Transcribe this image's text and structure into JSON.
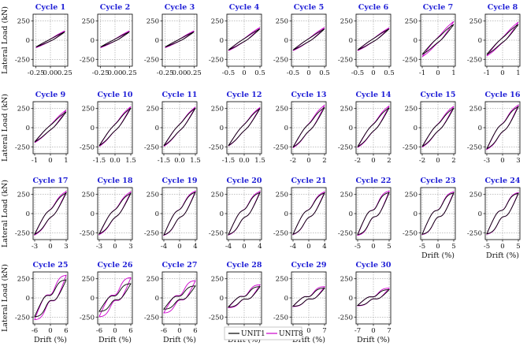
{
  "chart_data": {
    "type": "line",
    "series": [
      {
        "name": "UNIT1",
        "color": "#000000"
      },
      {
        "name": "UNIT8",
        "color": "#cc00cc"
      }
    ],
    "shared_ylabel": "Lateral Load (kN)",
    "shared_xlabel": "Drift (%)",
    "grid": true,
    "legend_placement": "bottom-center",
    "panels": [
      {
        "title": "Cycle 1",
        "drift": 0.25,
        "xticks": [
          "-0.25",
          "0.00",
          "0.25"
        ],
        "xlim": [
          -0.3,
          0.3
        ],
        "yticks": [
          "-250",
          "0",
          "250"
        ],
        "ylim": [
          -340,
          340
        ],
        "u1": [
          -90,
          110
        ],
        "u8": [
          -100,
          125
        ]
      },
      {
        "title": "Cycle 2",
        "drift": 0.25,
        "xticks": [
          "-0.25",
          "0.00",
          "0.25"
        ],
        "xlim": [
          -0.3,
          0.3
        ],
        "yticks": [
          "-250",
          "0",
          "250"
        ],
        "ylim": [
          -340,
          340
        ],
        "u1": [
          -90,
          110
        ],
        "u8": [
          -100,
          125
        ]
      },
      {
        "title": "Cycle 3",
        "drift": 0.25,
        "xticks": [
          "-0.25",
          "0.00",
          "0.25"
        ],
        "xlim": [
          -0.3,
          0.3
        ],
        "yticks": [
          "-250",
          "0",
          "250"
        ],
        "ylim": [
          -340,
          340
        ],
        "u1": [
          -90,
          110
        ],
        "u8": [
          -100,
          125
        ]
      },
      {
        "title": "Cycle 4",
        "drift": 0.5,
        "xticks": [
          "-0.5",
          "0",
          "0.5"
        ],
        "xlim": [
          -0.55,
          0.55
        ],
        "yticks": [
          "-250",
          "0",
          "250"
        ],
        "ylim": [
          -340,
          340
        ],
        "u1": [
          -130,
          150
        ],
        "u8": [
          -140,
          170
        ]
      },
      {
        "title": "Cycle 5",
        "drift": 0.5,
        "xticks": [
          "-0.5",
          "0",
          "0.5"
        ],
        "xlim": [
          -0.55,
          0.55
        ],
        "yticks": [
          "-250",
          "0",
          "250"
        ],
        "ylim": [
          -340,
          340
        ],
        "u1": [
          -130,
          150
        ],
        "u8": [
          -140,
          170
        ]
      },
      {
        "title": "Cycle 6",
        "drift": 0.5,
        "xticks": [
          "-0.5",
          "0",
          "0.5"
        ],
        "xlim": [
          -0.55,
          0.55
        ],
        "yticks": [
          "-250",
          "0",
          "250"
        ],
        "ylim": [
          -340,
          340
        ],
        "u1": [
          -130,
          150
        ],
        "u8": [
          -140,
          165
        ]
      },
      {
        "title": "Cycle 7",
        "drift": 1,
        "xticks": [
          "-1",
          "0",
          "1"
        ],
        "xlim": [
          -1.1,
          1.1
        ],
        "yticks": [
          "-250",
          "0",
          "250"
        ],
        "ylim": [
          -340,
          340
        ],
        "u1": [
          -190,
          210
        ],
        "u8": [
          -220,
          250
        ]
      },
      {
        "title": "Cycle 8",
        "drift": 1,
        "xticks": [
          "-1",
          "0",
          "1"
        ],
        "xlim": [
          -1.1,
          1.1
        ],
        "yticks": [
          "-250",
          "0",
          "250"
        ],
        "ylim": [
          -340,
          340
        ],
        "u1": [
          -190,
          210
        ],
        "u8": [
          -210,
          240
        ]
      },
      {
        "title": "Cycle 9",
        "drift": 1,
        "xticks": [
          "-1",
          "0",
          "1"
        ],
        "xlim": [
          -1.1,
          1.1
        ],
        "yticks": [
          "-250",
          "0",
          "250"
        ],
        "ylim": [
          -340,
          340
        ],
        "u1": [
          -190,
          210
        ],
        "u8": [
          -200,
          235
        ]
      },
      {
        "title": "Cycle 10",
        "drift": 1.5,
        "xticks": [
          "-1.5",
          "0.0",
          "1.5"
        ],
        "xlim": [
          -1.65,
          1.65
        ],
        "yticks": [
          "-250",
          "0",
          "250"
        ],
        "ylim": [
          -340,
          340
        ],
        "u1": [
          -240,
          260
        ],
        "u8": [
          -250,
          280
        ]
      },
      {
        "title": "Cycle 11",
        "drift": 1.5,
        "xticks": [
          "-1.5",
          "0.0",
          "1.5"
        ],
        "xlim": [
          -1.65,
          1.65
        ],
        "yticks": [
          "-250",
          "0",
          "250"
        ],
        "ylim": [
          -340,
          340
        ],
        "u1": [
          -240,
          260
        ],
        "u8": [
          -250,
          275
        ]
      },
      {
        "title": "Cycle 12",
        "drift": 1.5,
        "xticks": [
          "-1.5",
          "0.0",
          "1.5"
        ],
        "xlim": [
          -1.65,
          1.65
        ],
        "yticks": [
          "-250",
          "0",
          "250"
        ],
        "ylim": [
          -340,
          340
        ],
        "u1": [
          -240,
          255
        ],
        "u8": [
          -245,
          270
        ]
      },
      {
        "title": "Cycle 13",
        "drift": 2,
        "xticks": [
          "-2",
          "0",
          "2"
        ],
        "xlim": [
          -2.2,
          2.2
        ],
        "yticks": [
          "-250",
          "0",
          "250"
        ],
        "ylim": [
          -340,
          340
        ],
        "u1": [
          -260,
          270
        ],
        "u8": [
          -270,
          300
        ]
      },
      {
        "title": "Cycle 14",
        "drift": 2,
        "xticks": [
          "-2",
          "0",
          "2"
        ],
        "xlim": [
          -2.2,
          2.2
        ],
        "yticks": [
          "-250",
          "0",
          "250"
        ],
        "ylim": [
          -340,
          340
        ],
        "u1": [
          -255,
          265
        ],
        "u8": [
          -265,
          290
        ]
      },
      {
        "title": "Cycle 15",
        "drift": 2,
        "xticks": [
          "-2",
          "0",
          "2"
        ],
        "xlim": [
          -2.2,
          2.2
        ],
        "yticks": [
          "-250",
          "0",
          "250"
        ],
        "ylim": [
          -340,
          340
        ],
        "u1": [
          -250,
          260
        ],
        "u8": [
          -260,
          285
        ]
      },
      {
        "title": "Cycle 16",
        "drift": 3,
        "xticks": [
          "-3",
          "0",
          "3"
        ],
        "xlim": [
          -3.3,
          3.3
        ],
        "yticks": [
          "-250",
          "0",
          "250"
        ],
        "ylim": [
          -340,
          340
        ],
        "u1": [
          -280,
          280
        ],
        "u8": [
          -290,
          300
        ]
      },
      {
        "title": "Cycle 17",
        "drift": 3,
        "xticks": [
          "-3",
          "0",
          "3"
        ],
        "xlim": [
          -3.3,
          3.3
        ],
        "yticks": [
          "-250",
          "0",
          "250"
        ],
        "ylim": [
          -340,
          340
        ],
        "u1": [
          -275,
          275
        ],
        "u8": [
          -285,
          295
        ]
      },
      {
        "title": "Cycle 18",
        "drift": 3,
        "xticks": [
          "-3",
          "0",
          "3"
        ],
        "xlim": [
          -3.3,
          3.3
        ],
        "yticks": [
          "-250",
          "0",
          "250"
        ],
        "ylim": [
          -340,
          340
        ],
        "u1": [
          -270,
          270
        ],
        "u8": [
          -280,
          290
        ]
      },
      {
        "title": "Cycle 19",
        "drift": 4,
        "xticks": [
          "-4",
          "0",
          "4"
        ],
        "xlim": [
          -4.4,
          4.4
        ],
        "yticks": [
          "-250",
          "0",
          "250"
        ],
        "ylim": [
          -340,
          340
        ],
        "u1": [
          -285,
          285
        ],
        "u8": [
          -290,
          300
        ]
      },
      {
        "title": "Cycle 20",
        "drift": 4,
        "xticks": [
          "-4",
          "0",
          "4"
        ],
        "xlim": [
          -4.4,
          4.4
        ],
        "yticks": [
          "-250",
          "0",
          "250"
        ],
        "ylim": [
          -340,
          340
        ],
        "u1": [
          -280,
          280
        ],
        "u8": [
          -285,
          295
        ]
      },
      {
        "title": "Cycle 21",
        "drift": 4,
        "xticks": [
          "-4",
          "0",
          "4"
        ],
        "xlim": [
          -4.4,
          4.4
        ],
        "yticks": [
          "-250",
          "0",
          "250"
        ],
        "ylim": [
          -340,
          340
        ],
        "u1": [
          -275,
          275
        ],
        "u8": [
          -280,
          290
        ]
      },
      {
        "title": "Cycle 22",
        "drift": 5,
        "xticks": [
          "-5",
          "0",
          "5"
        ],
        "xlim": [
          -5.5,
          5.5
        ],
        "yticks": [
          "-250",
          "0",
          "250"
        ],
        "ylim": [
          -340,
          340
        ],
        "u1": [
          -280,
          280
        ],
        "u8": [
          -290,
          300
        ]
      },
      {
        "title": "Cycle 23",
        "drift": 5,
        "xticks": [
          "-5",
          "0",
          "5"
        ],
        "xlim": [
          -5.5,
          5.5
        ],
        "yticks": [
          "-250",
          "0",
          "250"
        ],
        "ylim": [
          -340,
          340
        ],
        "u1": [
          -275,
          275
        ],
        "u8": [
          -280,
          290
        ]
      },
      {
        "title": "Cycle 24",
        "drift": 5,
        "xticks": [
          "-5",
          "0",
          "5"
        ],
        "xlim": [
          -5.5,
          5.5
        ],
        "yticks": [
          "-250",
          "0",
          "250"
        ],
        "ylim": [
          -340,
          340
        ],
        "u1": [
          -270,
          270
        ],
        "u8": [
          -275,
          280
        ]
      },
      {
        "title": "Cycle 25",
        "drift": 6,
        "xticks": [
          "-6",
          "0",
          "6"
        ],
        "xlim": [
          -6.6,
          6.6
        ],
        "yticks": [
          "-250",
          "0",
          "250"
        ],
        "ylim": [
          -340,
          340
        ],
        "u1": [
          -250,
          240
        ],
        "u8": [
          -290,
          300
        ]
      },
      {
        "title": "Cycle 26",
        "drift": 6,
        "xticks": [
          "-6",
          "0",
          "6"
        ],
        "xlim": [
          -6.6,
          6.6
        ],
        "yticks": [
          "-250",
          "0",
          "250"
        ],
        "ylim": [
          -340,
          340
        ],
        "u1": [
          -180,
          190
        ],
        "u8": [
          -250,
          270
        ]
      },
      {
        "title": "Cycle 27",
        "drift": 6,
        "xticks": [
          "-6",
          "0",
          "6"
        ],
        "xlim": [
          -6.6,
          6.6
        ],
        "yticks": [
          "-250",
          "0",
          "250"
        ],
        "ylim": [
          -340,
          340
        ],
        "u1": [
          -150,
          160
        ],
        "u8": [
          -200,
          230
        ]
      },
      {
        "title": "Cycle 28",
        "drift": 7,
        "xticks": [
          "-7",
          "0",
          "7"
        ],
        "xlim": [
          -7.7,
          7.7
        ],
        "yticks": [
          "-250",
          "0",
          "250"
        ],
        "ylim": [
          -340,
          340
        ],
        "u1": [
          -120,
          150
        ],
        "u8": [
          -130,
          175
        ]
      },
      {
        "title": "Cycle 29",
        "drift": 7,
        "xticks": [
          "-7",
          "0",
          "7"
        ],
        "xlim": [
          -7.7,
          7.7
        ],
        "yticks": [
          "-250",
          "0",
          "250"
        ],
        "ylim": [
          -340,
          340
        ],
        "u1": [
          -110,
          130
        ],
        "u8": [
          -115,
          150
        ]
      },
      {
        "title": "Cycle 30",
        "drift": 7,
        "xticks": [
          "-7",
          "0",
          "7"
        ],
        "xlim": [
          -7.7,
          7.7
        ],
        "yticks": [
          "-250",
          "0",
          "250"
        ],
        "ylim": [
          -340,
          340
        ],
        "u1": [
          -100,
          110
        ],
        "u8": [
          -105,
          130
        ]
      }
    ]
  }
}
